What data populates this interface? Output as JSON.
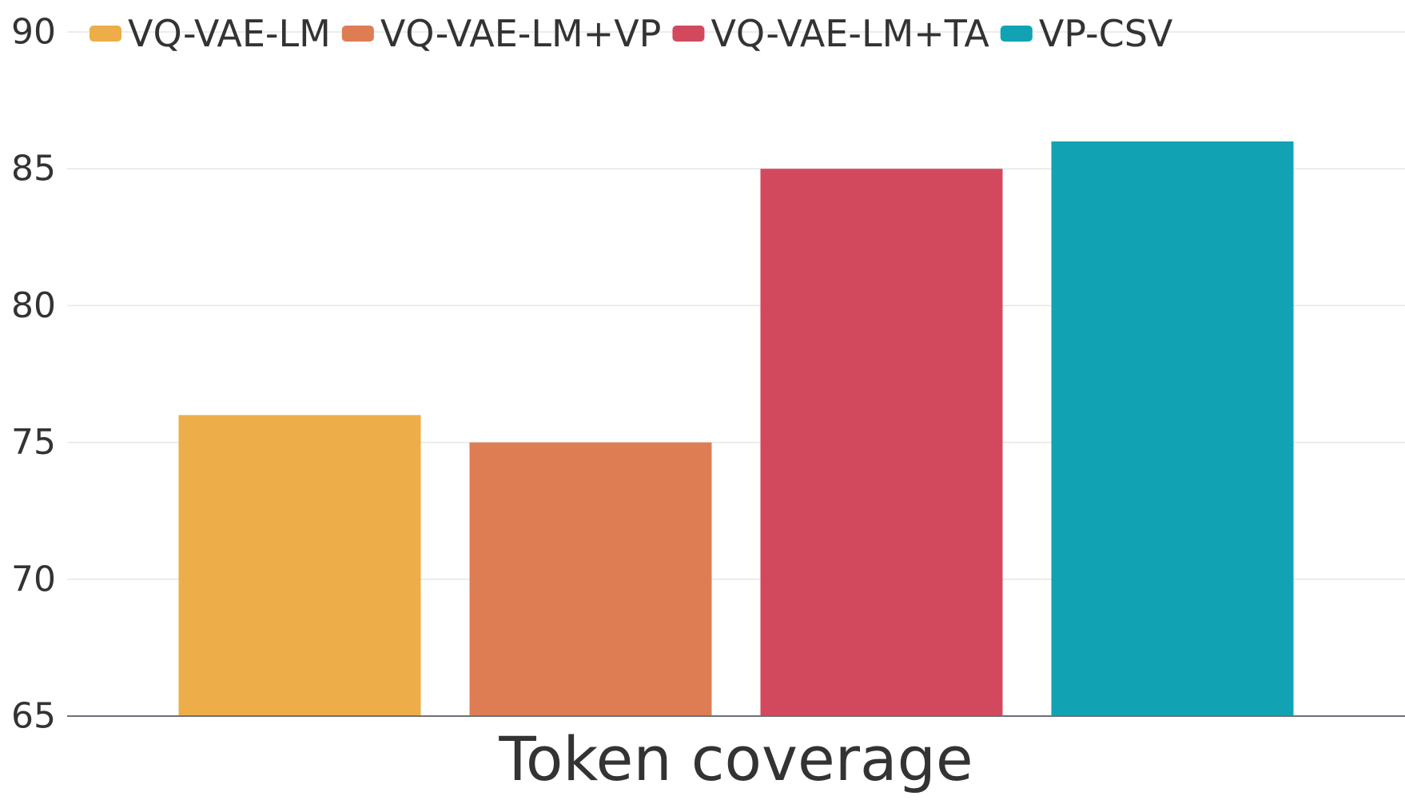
{
  "chart_data": {
    "type": "bar",
    "categories": [
      "Token coverage"
    ],
    "series": [
      {
        "name": "VQ-VAE-LM",
        "values": [
          76
        ],
        "color": "#EDAD48"
      },
      {
        "name": "VQ-VAE-LM+VP",
        "values": [
          75
        ],
        "color": "#DE7D54"
      },
      {
        "name": "VQ-VAE-LM+TA",
        "values": [
          85
        ],
        "color": "#D2495D"
      },
      {
        "name": "VP-CSV",
        "values": [
          86
        ],
        "color": "#11A3B3"
      }
    ],
    "title": "",
    "xlabel": "",
    "ylabel": "",
    "ylim": [
      65,
      90
    ],
    "yticks": [
      "65",
      "70",
      "75",
      "80",
      "85",
      "90"
    ],
    "grid": true,
    "legend_position": "top"
  }
}
